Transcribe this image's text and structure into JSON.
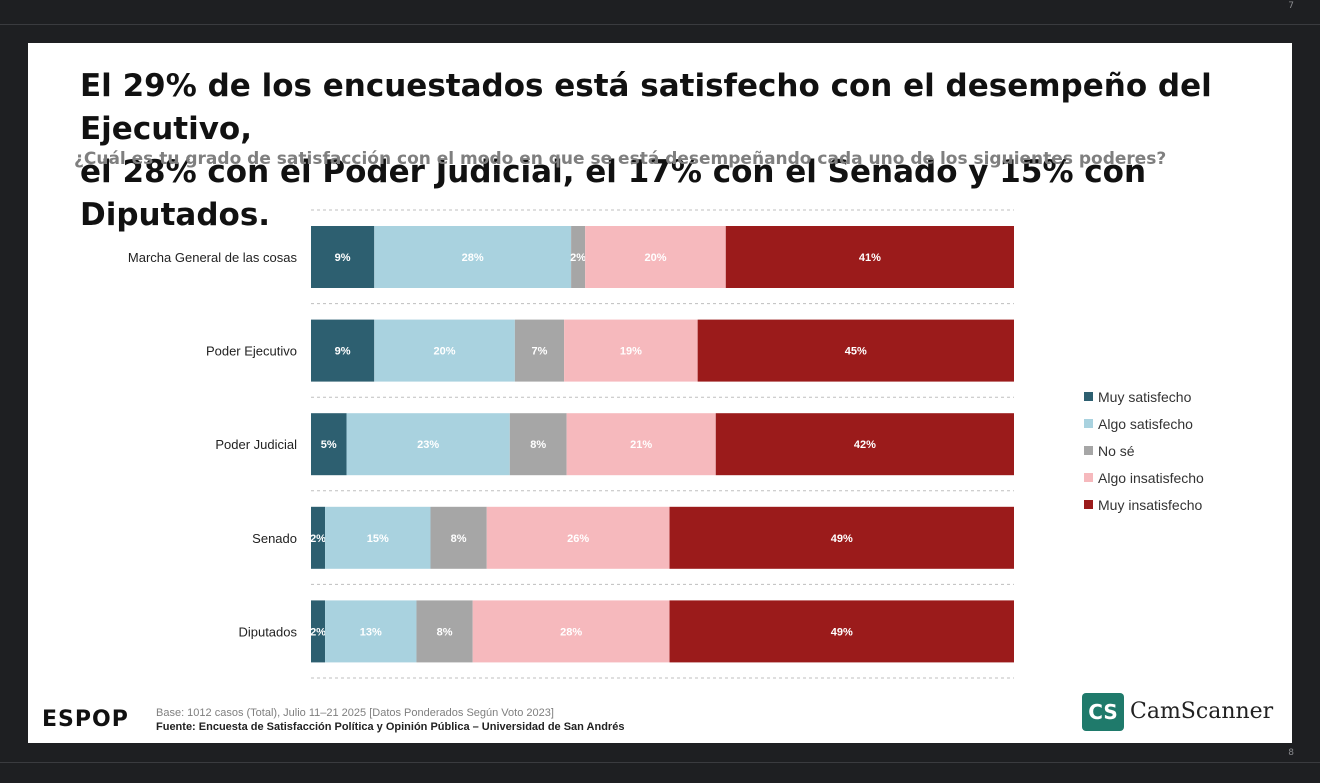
{
  "page_numbers": {
    "top": "7",
    "bottom": "8"
  },
  "slide": {
    "title_line1": "El 29% de los encuestados está satisfecho con el desempeño del Ejecutivo,",
    "title_line2": "el 28% con el Poder Judicial, el 17% con el Senado y 15% con Diputados.",
    "question": "¿Cuál es tu grado de satisfacción con el modo en que se está desempeñando cada uno de los siguientes poderes?",
    "logo": "ESPOP",
    "base_note": "Base: 1012 casos (Total), Julio 11–21 2025 [Datos Ponderados Según Voto 2023]",
    "source_note": "Fuente: Encuesta de Satisfacción Política y Opinión Pública – Universidad de San Andrés",
    "watermark": {
      "box": "CS",
      "text": "CamScanner"
    }
  },
  "chart_data": {
    "type": "bar",
    "orientation": "horizontal",
    "stacked": "100%",
    "categories": [
      "Marcha General de las cosas",
      "Poder Ejecutivo",
      "Poder Judicial",
      "Senado",
      "Diputados"
    ],
    "series": [
      {
        "name": "Muy satisfecho",
        "color": "#2d5f70",
        "values": [
          9,
          9,
          5,
          2,
          2
        ]
      },
      {
        "name": "Algo satisfecho",
        "color": "#a9d2df",
        "values": [
          28,
          20,
          23,
          15,
          13
        ]
      },
      {
        "name": "No sé",
        "color": "#a6a6a6",
        "values": [
          2,
          7,
          8,
          8,
          8
        ]
      },
      {
        "name": "Algo insatisfecho",
        "color": "#f6b9bd",
        "values": [
          20,
          19,
          21,
          26,
          28
        ]
      },
      {
        "name": "Muy insatisfecho",
        "color": "#9b1b1b",
        "values": [
          41,
          45,
          42,
          49,
          49
        ]
      }
    ],
    "legend_position": "right",
    "grid": false
  }
}
